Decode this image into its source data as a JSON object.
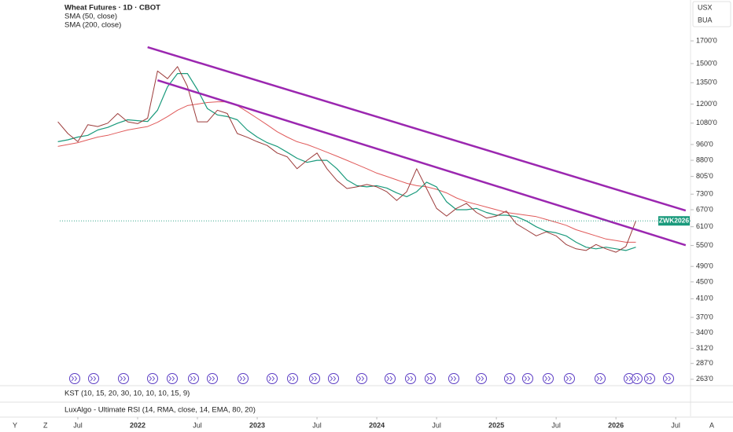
{
  "chart_data": {
    "type": "line",
    "title": "Wheat Futures · 1D · CBOT",
    "indicators": [
      "SMA (50, close)",
      "SMA (200, close)"
    ],
    "currency_buttons": [
      "USX",
      "BUA"
    ],
    "price_tag": "ZWK2026",
    "lower_panes": [
      "KST (10, 15, 20, 30, 10, 10, 10, 15, 9)",
      "LuxAlgo - Ultimate RSI (14, RMA, close, 14, EMA, 80, 20)"
    ],
    "corner_labels": [
      "Y",
      "Z",
      "A"
    ],
    "log_scale": true,
    "x": [
      "2021-05",
      "2021-06",
      "2021-07",
      "2021-08",
      "2021-09",
      "2021-10",
      "2021-11",
      "2021-12",
      "2022-01",
      "2022-02",
      "2022-03",
      "2022-04",
      "2022-05",
      "2022-06",
      "2022-07",
      "2022-08",
      "2022-09",
      "2022-10",
      "2022-11",
      "2022-12",
      "2023-01",
      "2023-02",
      "2023-03",
      "2023-04",
      "2023-05",
      "2023-06",
      "2023-07",
      "2023-08",
      "2023-09",
      "2023-10",
      "2023-11",
      "2023-12",
      "2024-01",
      "2024-02",
      "2024-03",
      "2024-04",
      "2024-05",
      "2024-06",
      "2024-07",
      "2024-08",
      "2024-09",
      "2024-10",
      "2024-11",
      "2024-12",
      "2025-01",
      "2025-02",
      "2025-03",
      "2025-04",
      "2025-05",
      "2025-06",
      "2025-07",
      "2025-08",
      "2025-09",
      "2025-10",
      "2025-11",
      "2025-12",
      "2026-01",
      "2026-02",
      "2026-03"
    ],
    "series": [
      {
        "name": "Wheat Futures",
        "color": "#9c3b3a",
        "width": 1,
        "values": [
          1088,
          1020,
          975,
          1071,
          1060,
          1080,
          1139,
          1088,
          1077,
          1110,
          1440,
          1380,
          1475,
          1323,
          1088,
          1088,
          1160,
          1139,
          1020,
          999,
          975,
          955,
          916,
          897,
          840,
          880,
          916,
          840,
          787,
          753,
          760,
          770,
          760,
          740,
          705,
          740,
          840,
          753,
          675,
          647,
          675,
          694,
          660,
          640,
          647,
          665,
          620,
          600,
          580,
          593,
          580,
          553,
          540,
          535,
          553,
          540,
          530,
          547,
          630
        ]
      },
      {
        "name": "SMA (50, close)",
        "color": "#1a9a7c",
        "width": 1.2,
        "values": [
          975,
          985,
          1000,
          1010,
          1040,
          1055,
          1080,
          1100,
          1095,
          1090,
          1160,
          1320,
          1420,
          1420,
          1300,
          1170,
          1130,
          1120,
          1100,
          1040,
          1000,
          970,
          950,
          920,
          890,
          870,
          880,
          880,
          840,
          790,
          765,
          760,
          765,
          755,
          735,
          720,
          740,
          780,
          760,
          700,
          670,
          670,
          675,
          660,
          650,
          650,
          645,
          630,
          610,
          595,
          590,
          580,
          560,
          545,
          540,
          545,
          540,
          535,
          545
        ]
      },
      {
        "name": "SMA (200, close)",
        "color": "#e05a5a",
        "width": 1,
        "values": [
          950,
          960,
          970,
          985,
          1000,
          1010,
          1025,
          1040,
          1050,
          1060,
          1085,
          1120,
          1160,
          1190,
          1200,
          1210,
          1215,
          1215,
          1190,
          1150,
          1110,
          1070,
          1030,
          1000,
          975,
          960,
          940,
          920,
          900,
          880,
          860,
          840,
          820,
          805,
          790,
          775,
          765,
          760,
          750,
          735,
          715,
          700,
          690,
          680,
          670,
          660,
          655,
          650,
          645,
          635,
          625,
          615,
          600,
          590,
          580,
          570,
          565,
          560,
          560
        ]
      }
    ],
    "trendlines": [
      {
        "color": "#9b27b0",
        "x": [
          "2022-02",
          "2026-08"
        ],
        "y": [
          1642,
          667
        ]
      },
      {
        "color": "#9b27b0",
        "x": [
          "2022-03",
          "2026-08"
        ],
        "y": [
          1368,
          551
        ]
      }
    ],
    "ylim": [
      255,
      2130
    ],
    "yticks": [
      {
        "value": 1700,
        "label": "1700'0"
      },
      {
        "value": 1500,
        "label": "1500'0"
      },
      {
        "value": 1350,
        "label": "1350'0"
      },
      {
        "value": 1200,
        "label": "1200'0"
      },
      {
        "value": 1080,
        "label": "1080'0"
      },
      {
        "value": 960,
        "label": "960'0"
      },
      {
        "value": 880,
        "label": "880'0"
      },
      {
        "value": 805,
        "label": "805'0"
      },
      {
        "value": 730,
        "label": "730'0"
      },
      {
        "value": 670,
        "label": "670'0"
      },
      {
        "value": 610,
        "label": "610'0"
      },
      {
        "value": 550,
        "label": "550'0"
      },
      {
        "value": 490,
        "label": "490'0"
      },
      {
        "value": 450,
        "label": "450'0"
      },
      {
        "value": 410,
        "label": "410'0"
      },
      {
        "value": 370,
        "label": "370'0"
      },
      {
        "value": 340,
        "label": "340'0"
      },
      {
        "value": 312,
        "label": "312'0"
      },
      {
        "value": 287,
        "label": "287'0"
      },
      {
        "value": 263,
        "label": "263'0"
      }
    ],
    "xticks": [
      {
        "value": "2021-07",
        "label": "Jul"
      },
      {
        "value": "2022-01",
        "label": "2022"
      },
      {
        "value": "2022-07",
        "label": "Jul"
      },
      {
        "value": "2023-01",
        "label": "2023"
      },
      {
        "value": "2023-07",
        "label": "Jul"
      },
      {
        "value": "2024-01",
        "label": "2024"
      },
      {
        "value": "2024-07",
        "label": "Jul"
      },
      {
        "value": "2025-01",
        "label": "2025"
      },
      {
        "value": "2025-07",
        "label": "Jul"
      },
      {
        "value": "2026-01",
        "label": "2026"
      },
      {
        "value": "2026-07",
        "label": "Jul"
      }
    ]
  }
}
